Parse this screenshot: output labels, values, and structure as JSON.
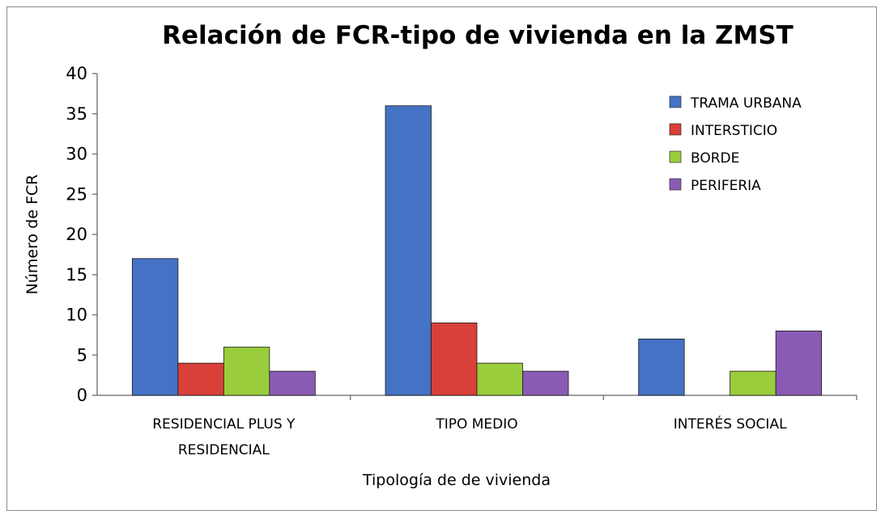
{
  "chart_data": {
    "type": "bar",
    "title": "Relación de FCR-tipo de vivienda en la ZMST",
    "xlabel": "Tipología de de vivienda",
    "ylabel": "Número de FCR",
    "ylim": [
      0,
      40
    ],
    "yticks": [
      0,
      5,
      10,
      15,
      20,
      25,
      30,
      35,
      40
    ],
    "grid": false,
    "legend_position": "top-right",
    "categories": [
      [
        "RESIDENCIAL PLUS Y",
        "RESIDENCIAL"
      ],
      [
        "TIPO MEDIO"
      ],
      [
        "INTERÉS SOCIAL"
      ]
    ],
    "series": [
      {
        "name": "TRAMA URBANA",
        "color": "#4472c4",
        "values": [
          17,
          36,
          7
        ]
      },
      {
        "name": "INTERSTICIO",
        "color": "#d9403a",
        "values": [
          4,
          9,
          0
        ]
      },
      {
        "name": "BORDE",
        "color": "#9acd3c",
        "values": [
          6,
          4,
          3
        ]
      },
      {
        "name": "PERIFERIA",
        "color": "#8a5bb4",
        "values": [
          3,
          3,
          8
        ]
      }
    ]
  }
}
